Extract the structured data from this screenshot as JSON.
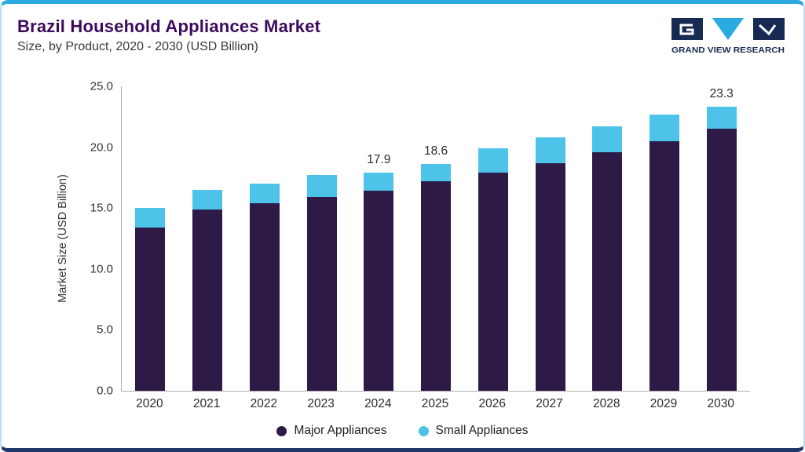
{
  "page": {
    "title": "Brazil Household Appliances Market",
    "subtitle": "Size, by Product, 2020 - 2030 (USD Billion)"
  },
  "logo": {
    "text": "GRAND VIEW RESEARCH",
    "navy": "#172A53",
    "cyan": "#29ABE2"
  },
  "colors": {
    "title_purple": "#3B0A5D",
    "border_light_blue": "#b9dff2",
    "top_bar_blue": "#2BA9E1",
    "bottom_bar_navy": "#20376B",
    "axis_gray": "#b0b0b0"
  },
  "chart_data": {
    "type": "bar",
    "stacked": true,
    "title": "Brazil Household Appliances Market Size, by Product, 2020 - 2030 (USD Billion)",
    "categories": [
      "2020",
      "2021",
      "2022",
      "2023",
      "2024",
      "2025",
      "2026",
      "2027",
      "2028",
      "2029",
      "2030"
    ],
    "series": [
      {
        "name": "Major Appliances",
        "color": "#2E1A47",
        "values": [
          13.4,
          14.9,
          15.4,
          15.9,
          16.4,
          17.2,
          17.9,
          18.7,
          19.6,
          20.5,
          21.5
        ]
      },
      {
        "name": "Small Appliances",
        "color": "#4EC3EA",
        "values": [
          1.6,
          1.6,
          1.6,
          1.8,
          1.5,
          1.4,
          2.0,
          2.1,
          2.1,
          2.2,
          1.8
        ]
      }
    ],
    "totals": [
      15.0,
      16.5,
      17.0,
      17.7,
      17.9,
      18.6,
      19.9,
      20.8,
      21.7,
      22.7,
      23.3
    ],
    "bar_labels": [
      "",
      "",
      "",
      "",
      "17.9",
      "18.6",
      "",
      "",
      "",
      "",
      "23.3"
    ],
    "xlabel": "",
    "ylabel": "Market Size (USD Billion)",
    "ylim": [
      0,
      25
    ],
    "yticks": [
      "0.0",
      "5.0",
      "10.0",
      "15.0",
      "20.0",
      "25.0"
    ],
    "grid": false,
    "legend_position": "bottom"
  }
}
